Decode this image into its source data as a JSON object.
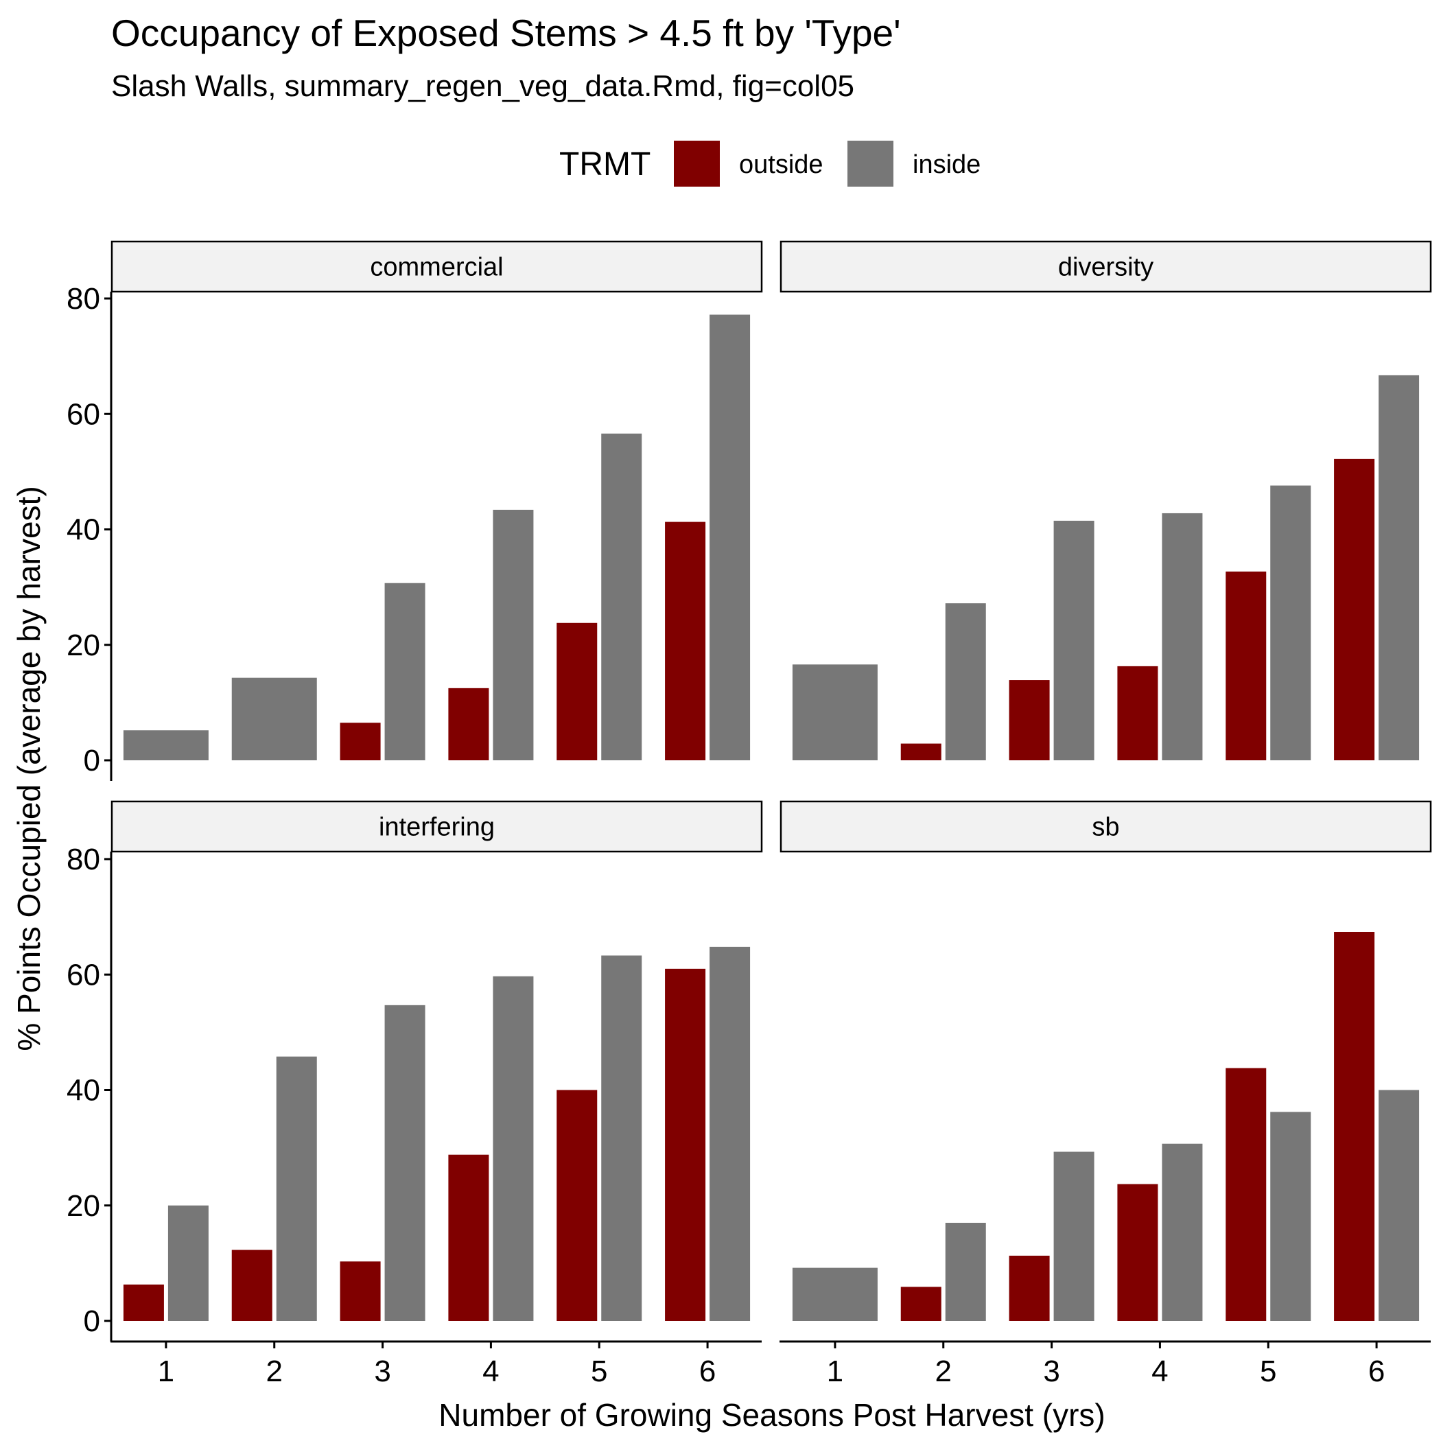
{
  "chart_data": {
    "type": "bar",
    "title": "Occupancy of Exposed Stems > 4.5 ft by 'Type'",
    "subtitle": "Slash Walls, summary_regen_veg_data.Rmd, fig=col05",
    "xlabel": "Number of Growing Seasons Post Harvest (yrs)",
    "ylabel": "% Points Occupied (average by harvest)",
    "ylim": [
      0,
      80
    ],
    "yticks": [
      0,
      20,
      40,
      60,
      80
    ],
    "categories": [
      "1",
      "2",
      "3",
      "4",
      "5",
      "6"
    ],
    "legend": {
      "title": "TRMT",
      "position": "top",
      "entries": [
        {
          "name": "outside",
          "color": "#800000"
        },
        {
          "name": "inside",
          "color": "#777777"
        }
      ]
    },
    "panels": [
      {
        "name": "commercial",
        "series": [
          {
            "name": "outside",
            "values": [
              null,
              null,
              6.5,
              12.5,
              23.8,
              41.3
            ]
          },
          {
            "name": "inside",
            "values": [
              5.2,
              14.3,
              30.7,
              43.4,
              56.6,
              77.2
            ]
          }
        ]
      },
      {
        "name": "diversity",
        "series": [
          {
            "name": "outside",
            "values": [
              null,
              2.9,
              13.9,
              16.3,
              32.7,
              52.2
            ]
          },
          {
            "name": "inside",
            "values": [
              16.6,
              27.2,
              41.5,
              42.8,
              47.6,
              66.7
            ]
          }
        ]
      },
      {
        "name": "interfering",
        "series": [
          {
            "name": "outside",
            "values": [
              6.3,
              12.3,
              10.3,
              28.8,
              40.0,
              61.0
            ]
          },
          {
            "name": "inside",
            "values": [
              20.0,
              45.8,
              54.7,
              59.7,
              63.3,
              64.8
            ]
          }
        ]
      },
      {
        "name": "sb",
        "series": [
          {
            "name": "outside",
            "values": [
              null,
              5.9,
              11.3,
              23.7,
              43.8,
              67.4
            ]
          },
          {
            "name": "inside",
            "values": [
              9.2,
              17.0,
              29.3,
              30.7,
              36.2,
              40.0
            ]
          }
        ]
      }
    ]
  }
}
